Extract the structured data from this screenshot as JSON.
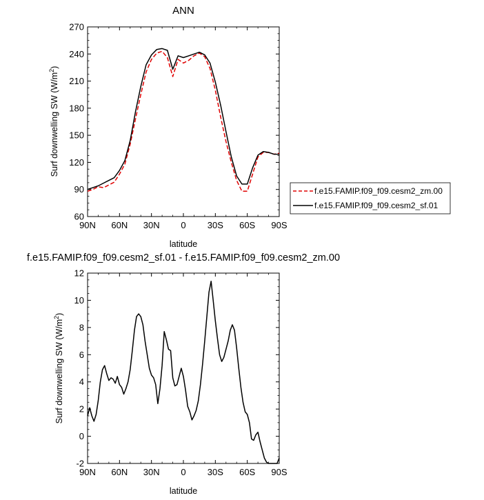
{
  "figure": {
    "title_top": "ANN",
    "title_bottom": "f.e15.FAMIP.f09_f09.cesm2_sf.01 - f.e15.FAMIP.f09_f09.cesm2_zm.00"
  },
  "chart_data": [
    {
      "type": "line",
      "title": "ANN",
      "xlabel": "latitude",
      "ylabel_main": "Surf downwelling SW (W/m",
      "ylabel_sup": "2",
      "ylabel_close": ")",
      "xlim": [
        90,
        -90
      ],
      "ylim": [
        60,
        270
      ],
      "xticks": [
        90,
        60,
        30,
        0,
        -30,
        -60,
        -90
      ],
      "xtick_labels": [
        "90N",
        "60N",
        "30N",
        "0",
        "30S",
        "60S",
        "90S"
      ],
      "yticks": [
        60,
        90,
        120,
        150,
        180,
        210,
        240,
        270
      ],
      "ytick_labels": [
        "60",
        "90",
        "120",
        "150",
        "180",
        "210",
        "240",
        "270"
      ],
      "legend": "right",
      "series": [
        {
          "name": "f.e15.FAMIP.f09_f09.cesm2_zm.00",
          "color": "#e00000",
          "dash": "dashed",
          "x": [
            90,
            85,
            80,
            75,
            70,
            65,
            60,
            55,
            50,
            45,
            40,
            35,
            30,
            25,
            20,
            15,
            10,
            5,
            0,
            -5,
            -10,
            -15,
            -20,
            -25,
            -30,
            -35,
            -40,
            -45,
            -50,
            -55,
            -60,
            -65,
            -70,
            -75,
            -80,
            -85,
            -90
          ],
          "y": [
            88,
            90,
            93,
            92,
            95,
            98,
            107,
            118,
            140,
            168,
            195,
            220,
            234,
            241,
            243,
            236,
            215,
            234,
            230,
            233,
            238,
            241,
            237,
            224,
            200,
            170,
            143,
            120,
            100,
            88,
            88,
            107,
            126,
            131,
            131,
            129,
            130
          ]
        },
        {
          "name": "f.e15.FAMIP.f09_f09.cesm2_sf.01",
          "color": "#000000",
          "dash": "solid",
          "x": [
            90,
            85,
            80,
            75,
            70,
            65,
            60,
            55,
            50,
            45,
            40,
            35,
            30,
            25,
            20,
            15,
            10,
            5,
            0,
            -5,
            -10,
            -15,
            -20,
            -25,
            -30,
            -35,
            -40,
            -45,
            -50,
            -55,
            -60,
            -65,
            -70,
            -75,
            -80,
            -85,
            -90
          ],
          "y": [
            90,
            92,
            94,
            97,
            100,
            103,
            111,
            122,
            144,
            176,
            204,
            228,
            239,
            245,
            246,
            244,
            223,
            238,
            236,
            238,
            240,
            242,
            239,
            230,
            209,
            183,
            154,
            126,
            105,
            96,
            96,
            114,
            128,
            132,
            131,
            129,
            129
          ]
        }
      ]
    },
    {
      "type": "line",
      "title": "f.e15.FAMIP.f09_f09.cesm2_sf.01 - f.e15.FAMIP.f09_f09.cesm2_zm.00",
      "xlabel": "latitude",
      "ylabel_main": "Surf downwelling SW (W/m",
      "ylabel_sup": "2",
      "ylabel_close": ")",
      "xlim": [
        90,
        -90
      ],
      "ylim": [
        -2,
        12
      ],
      "xticks": [
        90,
        60,
        30,
        0,
        -30,
        -60,
        -90
      ],
      "xtick_labels": [
        "90N",
        "60N",
        "30N",
        "0",
        "30S",
        "60S",
        "90S"
      ],
      "yticks": [
        -2,
        0,
        2,
        4,
        6,
        8,
        10,
        12
      ],
      "ytick_labels": [
        "-2",
        "0",
        "2",
        "4",
        "6",
        "8",
        "10",
        "12"
      ],
      "series": [
        {
          "color": "#000000",
          "x": [
            90,
            88,
            86,
            84,
            82,
            80,
            78,
            76,
            74,
            72,
            70,
            68,
            66,
            64,
            62,
            60,
            58,
            56,
            54,
            52,
            50,
            48,
            46,
            44,
            42,
            40,
            38,
            36,
            34,
            32,
            30,
            28,
            26,
            24,
            22,
            20,
            18,
            16,
            14,
            12,
            10,
            8,
            6,
            4,
            2,
            0,
            -2,
            -4,
            -6,
            -8,
            -10,
            -12,
            -14,
            -16,
            -18,
            -20,
            -22,
            -24,
            -26,
            -28,
            -30,
            -32,
            -34,
            -36,
            -38,
            -40,
            -42,
            -44,
            -46,
            -48,
            -50,
            -52,
            -54,
            -56,
            -58,
            -60,
            -62,
            -64,
            -66,
            -68,
            -70,
            -72,
            -74,
            -76,
            -78,
            -80,
            -82,
            -84,
            -86,
            -88,
            -90
          ],
          "y": [
            1.5,
            2.1,
            1.5,
            1.1,
            1.6,
            2.6,
            4.0,
            4.9,
            5.2,
            4.6,
            4.1,
            4.3,
            4.2,
            3.9,
            4.4,
            3.8,
            3.6,
            3.1,
            3.5,
            4.0,
            4.9,
            6.3,
            7.8,
            8.8,
            9.0,
            8.8,
            8.2,
            7.0,
            6.0,
            5.0,
            4.5,
            4.3,
            3.8,
            2.4,
            3.5,
            5.2,
            7.7,
            7.1,
            6.4,
            6.3,
            4.3,
            3.7,
            3.8,
            4.4,
            5.0,
            4.4,
            3.4,
            2.2,
            1.8,
            1.2,
            1.5,
            1.9,
            2.6,
            3.8,
            5.3,
            7.0,
            8.8,
            10.6,
            11.4,
            10.0,
            8.5,
            7.2,
            6.0,
            5.5,
            5.8,
            6.4,
            7.0,
            7.8,
            8.2,
            7.8,
            6.5,
            5.0,
            3.6,
            2.5,
            1.8,
            1.6,
            1.0,
            -0.2,
            -0.3,
            0.1,
            0.3,
            -0.4,
            -1.0,
            -1.6,
            -1.9,
            -2.0,
            -2.0,
            -2.0,
            -2.0,
            -2.0,
            -1.6
          ]
        }
      ]
    }
  ]
}
